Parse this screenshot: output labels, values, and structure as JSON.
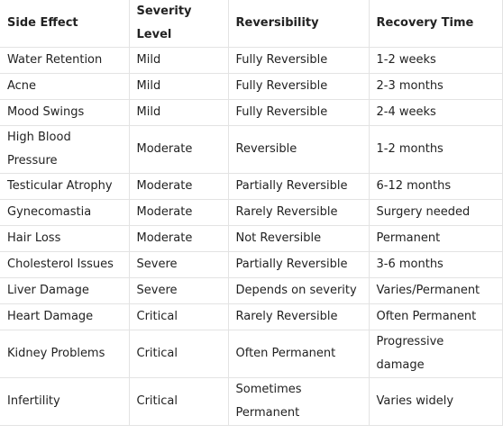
{
  "table": {
    "header": [
      "Side Effect",
      "Severity Level",
      "Reversibility",
      "Recovery Time"
    ],
    "rows": [
      [
        "Water Retention",
        "Mild",
        "Fully Reversible",
        "1-2 weeks"
      ],
      [
        "Acne",
        "Mild",
        "Fully Reversible",
        "2-3 months"
      ],
      [
        "Mood Swings",
        "Mild",
        "Fully Reversible",
        "2-4 weeks"
      ],
      [
        "High Blood Pressure",
        "Moderate",
        "Reversible",
        "1-2 months"
      ],
      [
        "Testicular Atrophy",
        "Moderate",
        "Partially Reversible",
        "6-12 months"
      ],
      [
        "Gynecomastia",
        "Moderate",
        "Rarely Reversible",
        "Surgery needed"
      ],
      [
        "Hair Loss",
        "Moderate",
        "Not Reversible",
        "Permanent"
      ],
      [
        "Cholesterol Issues",
        "Severe",
        "Partially Reversible",
        "3-6 months"
      ],
      [
        "Liver Damage",
        "Severe",
        "Depends on severity",
        "Varies/Permanent"
      ],
      [
        "Heart Damage",
        "Critical",
        "Rarely Reversible",
        "Often Permanent"
      ],
      [
        "Kidney Problems",
        "Critical",
        "Often Permanent",
        "Progressive damage"
      ],
      [
        "Infertility",
        "Critical",
        "Sometimes Permanent",
        "Varies widely"
      ]
    ]
  }
}
